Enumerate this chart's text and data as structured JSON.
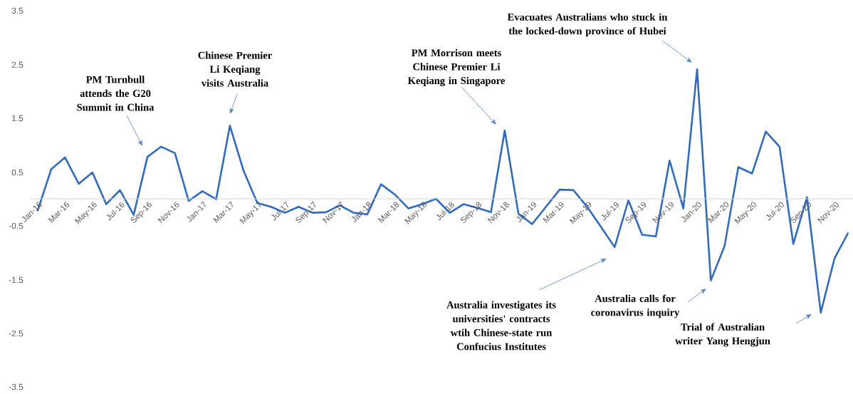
{
  "chart_data": {
    "type": "line",
    "color": "#2e6bc9",
    "categories": [
      "Jan-16",
      null,
      "Mar-16",
      null,
      "May-16",
      null,
      "Jul-16",
      null,
      "Sep-16",
      null,
      "Nov-16",
      null,
      "Jan-17",
      null,
      "Mar-17",
      null,
      "May-17",
      null,
      "Jul-17",
      null,
      "Sep-17",
      null,
      "Nov-17",
      null,
      "Jan-18",
      null,
      "Mar-18",
      null,
      "May-18",
      null,
      "Jul-18",
      null,
      "Sep-18",
      null,
      "Nov-18",
      null,
      "Jan-19",
      null,
      "Mar-19",
      null,
      "May-19",
      null,
      "Jul-19",
      null,
      "Sep-19",
      null,
      "Nov-19",
      null,
      "Jan-20",
      null,
      "Mar-20",
      null,
      "May-20",
      null,
      "Jul-20",
      null,
      "Sep-20",
      null,
      "Nov-20",
      null
    ],
    "values": [
      -0.23,
      0.55,
      0.77,
      0.28,
      0.49,
      -0.1,
      0.16,
      -0.3,
      0.78,
      0.97,
      0.85,
      -0.04,
      0.14,
      -0.01,
      1.36,
      0.52,
      -0.08,
      -0.15,
      -0.26,
      -0.15,
      -0.26,
      -0.25,
      -0.12,
      -0.26,
      -0.29,
      0.27,
      0.08,
      -0.18,
      -0.1,
      0.0,
      -0.26,
      -0.1,
      -0.17,
      -0.25,
      1.27,
      -0.28,
      -0.47,
      -0.15,
      0.17,
      0.16,
      -0.15,
      -0.52,
      -0.9,
      -0.03,
      -0.67,
      -0.7,
      0.71,
      -0.18,
      2.41,
      -1.52,
      -0.88,
      0.59,
      0.47,
      1.25,
      0.97,
      -0.84,
      0.03,
      -2.12,
      -1.11,
      -0.63
    ],
    "ylim": [
      -3.5,
      3.5
    ],
    "yticks": [
      -3.5,
      -2.5,
      -1.5,
      -0.5,
      0.5,
      1.5,
      2.5,
      3.5
    ],
    "annotations": [
      "PM Turnbull attends the G20 Summit in China",
      "Chinese Premier Li Keqiang visits Australia",
      "PM Morrison meets Chinese Premier Li Keqiang in Singapore",
      "Evacuates Australians who stuck in the locked-down province of Hubei",
      "Australia investigates its universities' contracts wtih Chinese-state run Confucius Institutes",
      "Australia calls for coronavirus inquiry",
      "Trial of Australian writer Yang Hengjun"
    ]
  }
}
